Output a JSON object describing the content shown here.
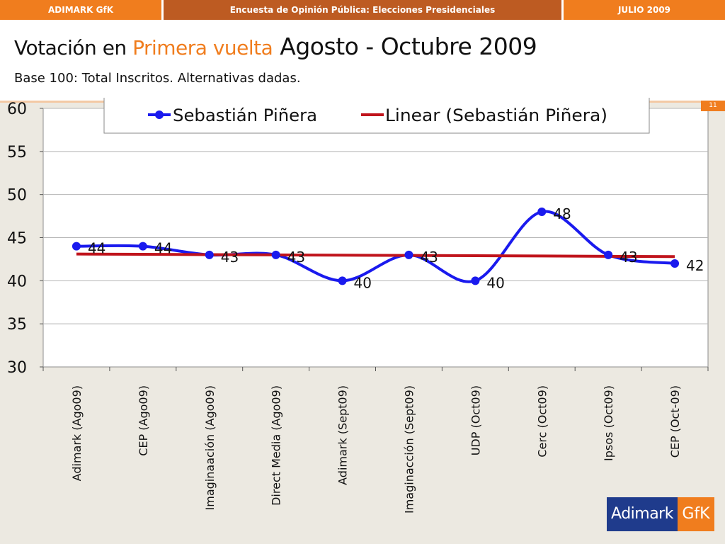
{
  "header": {
    "left": "ADIMARK GfK",
    "center": "Encuesta de Opinión Pública: Elecciones Presidenciales",
    "right": "JULIO 2009"
  },
  "title": {
    "part1": "Votación en ",
    "part2": "Primera vuelta",
    "part3": " Agosto - Octubre 2009"
  },
  "subtitle": "Base 100: Total Inscritos. Alternativas dadas.",
  "slide_number": "11",
  "logo": {
    "left": "Adimark",
    "right": "GfK"
  },
  "colors": {
    "orange": "#f07d1e",
    "series": "#1a1aee",
    "trend": "#c0141c"
  },
  "chart_data": {
    "type": "line",
    "categories": [
      "Adimark (Ago09)",
      "CEP (Ago09)",
      "Imaginaación (Ago09)",
      "Direct Media (Ago09)",
      "Adimark (Sept09)",
      "Imaginacción (Sept09)",
      "UDP (Oct09)",
      "Cerc (Oct09)",
      "Ipsos (Oct09)",
      "CEP (Oct-09)"
    ],
    "series": [
      {
        "name": "Sebastián Piñera",
        "values": [
          44,
          44,
          43,
          43,
          40,
          43,
          40,
          48,
          43,
          42
        ],
        "color": "#1a1aee",
        "smooth": true,
        "markers": true,
        "data_labels": true
      },
      {
        "name": "Linear (Sebastián Piñera)",
        "values": [
          43.1,
          43.07,
          43.03,
          43.0,
          42.97,
          42.93,
          42.9,
          42.87,
          42.83,
          42.8
        ],
        "color": "#c0141c",
        "trendline": true
      }
    ],
    "yticks": [
      30,
      35,
      40,
      45,
      50,
      55,
      60
    ],
    "ylim": [
      30,
      60
    ],
    "grid": true,
    "legend": "top"
  }
}
